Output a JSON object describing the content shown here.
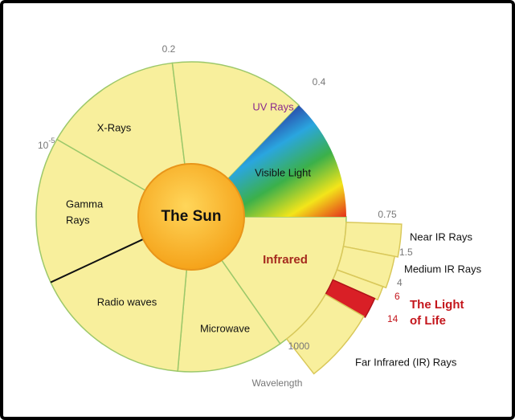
{
  "diagram": {
    "center": "The Sun",
    "regions": [
      "UV Rays",
      "X-Rays",
      "Visible Light",
      "Gamma",
      "Rays",
      "Infrared",
      "Radio waves",
      "Microwave"
    ],
    "infrared_bands": [
      "Near IR Rays",
      "Medium IR Rays",
      "The Light",
      "of Life",
      "Far Infrared (IR) Rays"
    ],
    "wavelengths": {
      "w1": "0.2",
      "w2": "0.4",
      "w3_base": "10",
      "w3_exp": "-5",
      "w4": "0.75",
      "w5": "1.5",
      "w6": "4",
      "w7": "6",
      "w8": "14",
      "w9": "1000"
    },
    "axis_label": "Wavelength"
  }
}
